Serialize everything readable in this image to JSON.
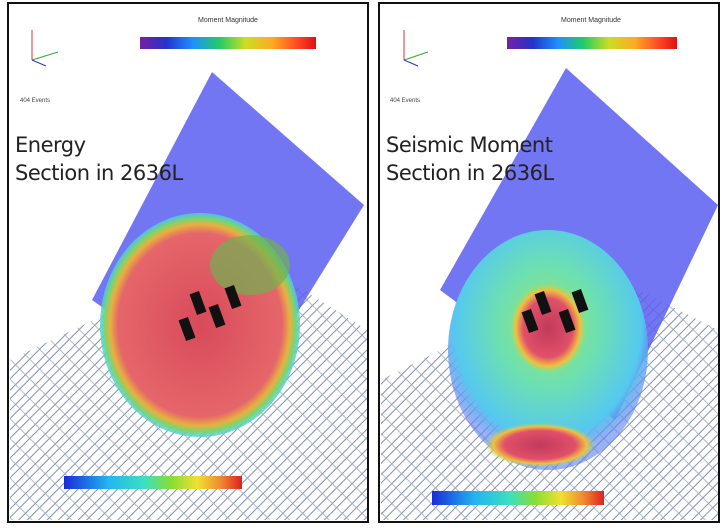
{
  "panels": [
    {
      "legend_title": "Moment Magnitude",
      "events": "404 Events",
      "label_line1": "Energy",
      "label_line2": "Section in 2636L"
    },
    {
      "legend_title": "Moment Magnitude",
      "events": "404 Events",
      "label_line1": "Seismic Moment",
      "label_line2": "Section in 2636L"
    }
  ]
}
